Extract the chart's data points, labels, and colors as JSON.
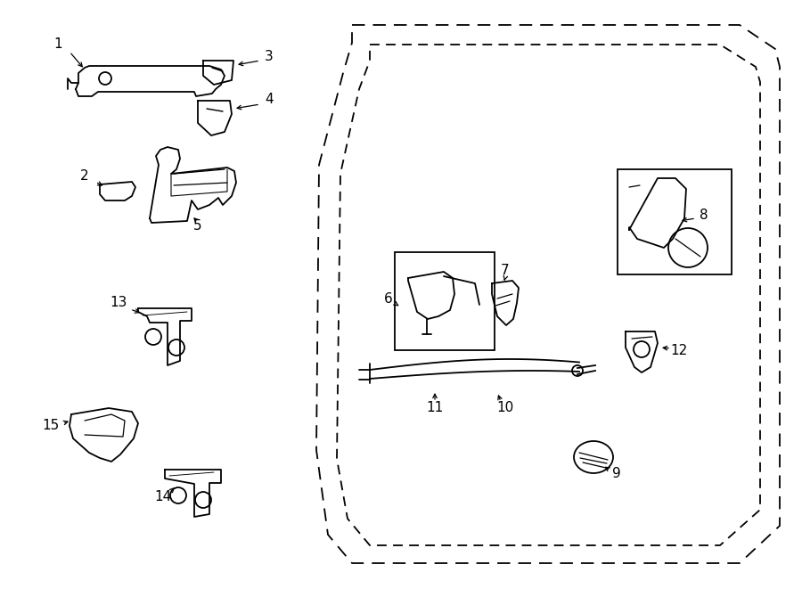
{
  "background_color": "#ffffff",
  "line_color": "#000000",
  "figure_width": 9.0,
  "figure_height": 6.61,
  "dpi": 100,
  "label_fontsize": 11,
  "door_outer_x": [
    395,
    830,
    870,
    875,
    875,
    830,
    395,
    368,
    355,
    358,
    385,
    395
  ],
  "door_outer_y": [
    28,
    28,
    55,
    75,
    590,
    632,
    632,
    600,
    505,
    185,
    82,
    48
  ],
  "door_inner_x": [
    415,
    808,
    848,
    853,
    853,
    808,
    415,
    390,
    378,
    382,
    403,
    415
  ],
  "door_inner_y": [
    50,
    50,
    75,
    92,
    572,
    612,
    612,
    582,
    515,
    195,
    100,
    68
  ]
}
